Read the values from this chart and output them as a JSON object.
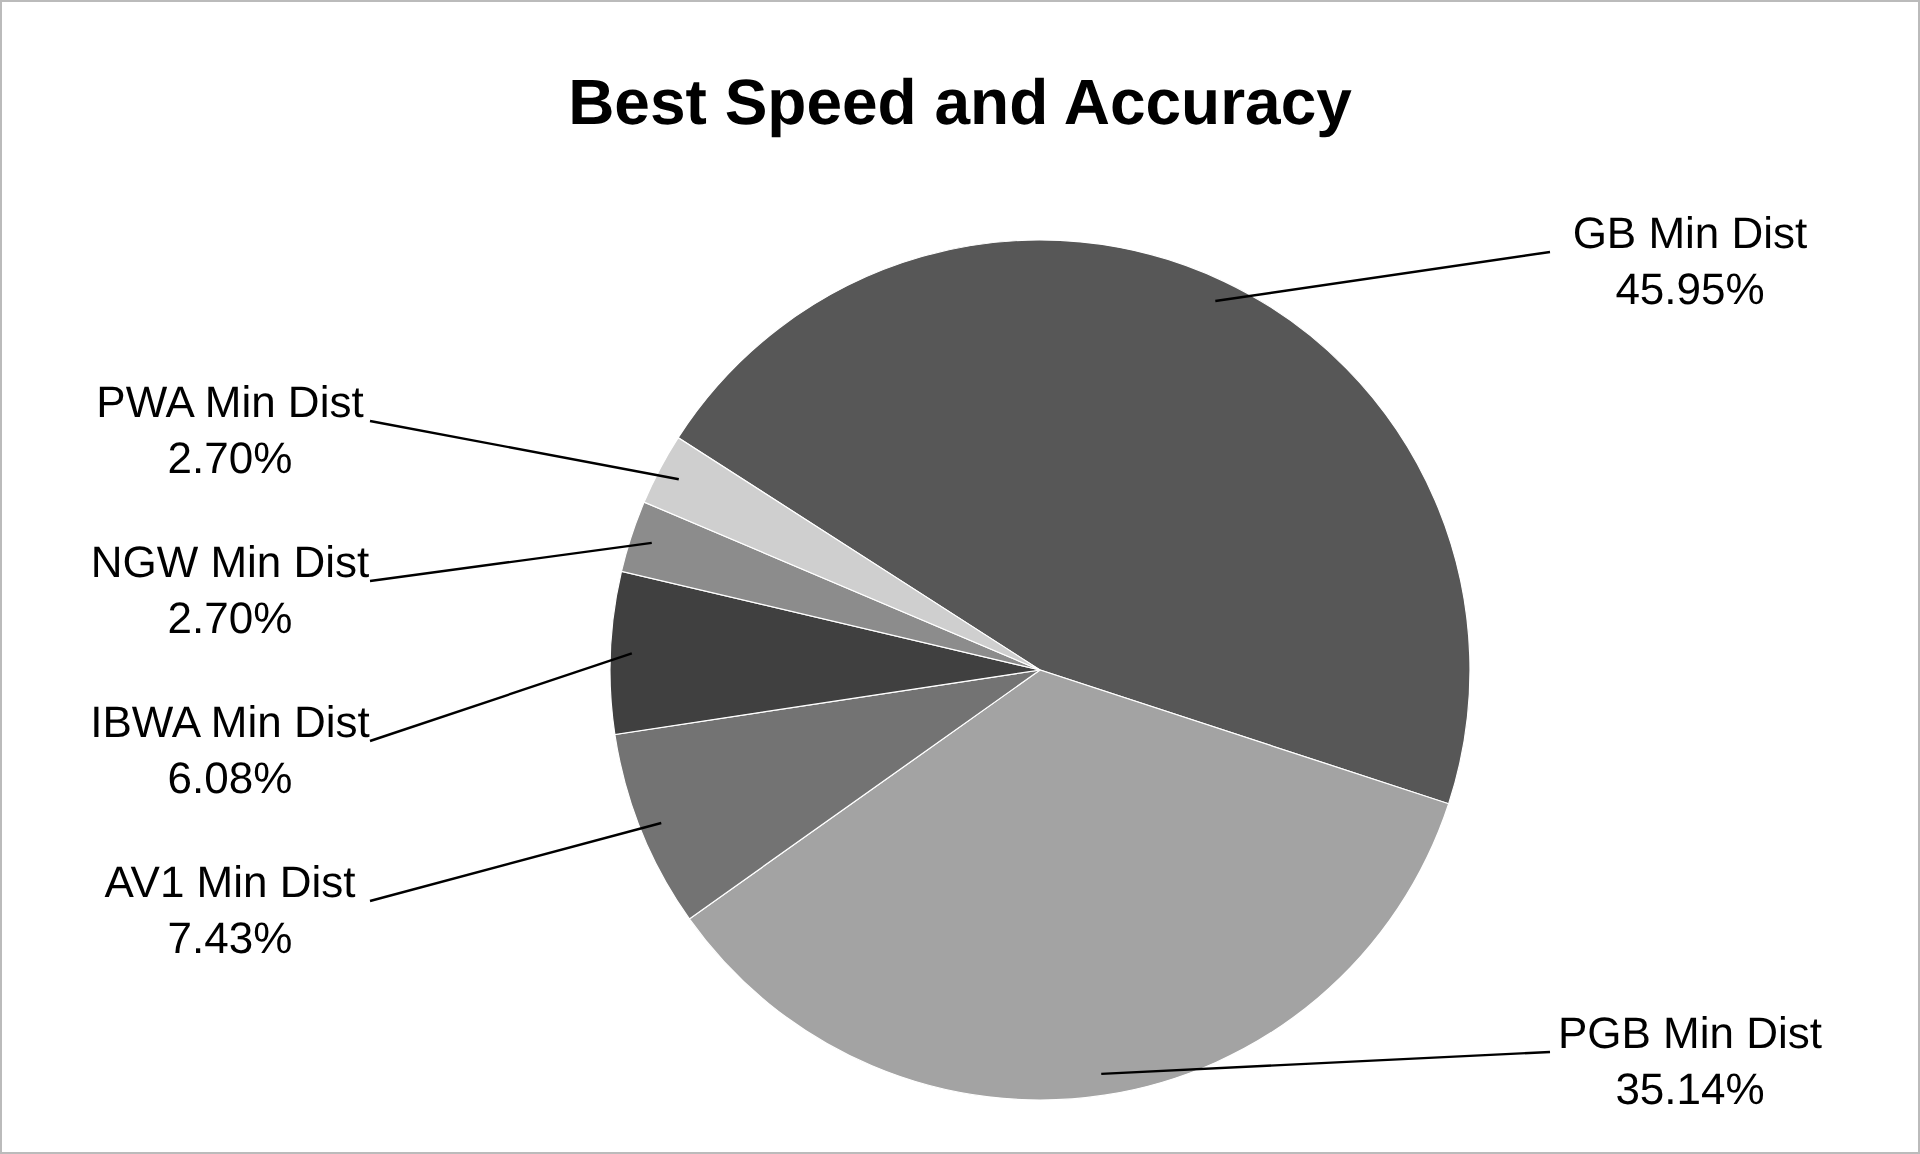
{
  "chart_data": {
    "type": "pie",
    "title": "Best Speed and Accuracy",
    "categories": [
      "GB Min Dist",
      "PGB Min Dist",
      "AV1 Min Dist",
      "IBWA Min Dist",
      "NGW Min Dist",
      "PWA Min Dist"
    ],
    "values": [
      45.95,
      35.14,
      7.43,
      6.08,
      2.7,
      2.7
    ],
    "colors": [
      "#575757",
      "#a3a3a3",
      "#737373",
      "#404040",
      "#8c8c8c",
      "#cfcfcf"
    ],
    "value_labels": [
      "45.95%",
      "35.14%",
      "7.43%",
      "6.08%",
      "2.70%",
      "2.70%"
    ]
  }
}
